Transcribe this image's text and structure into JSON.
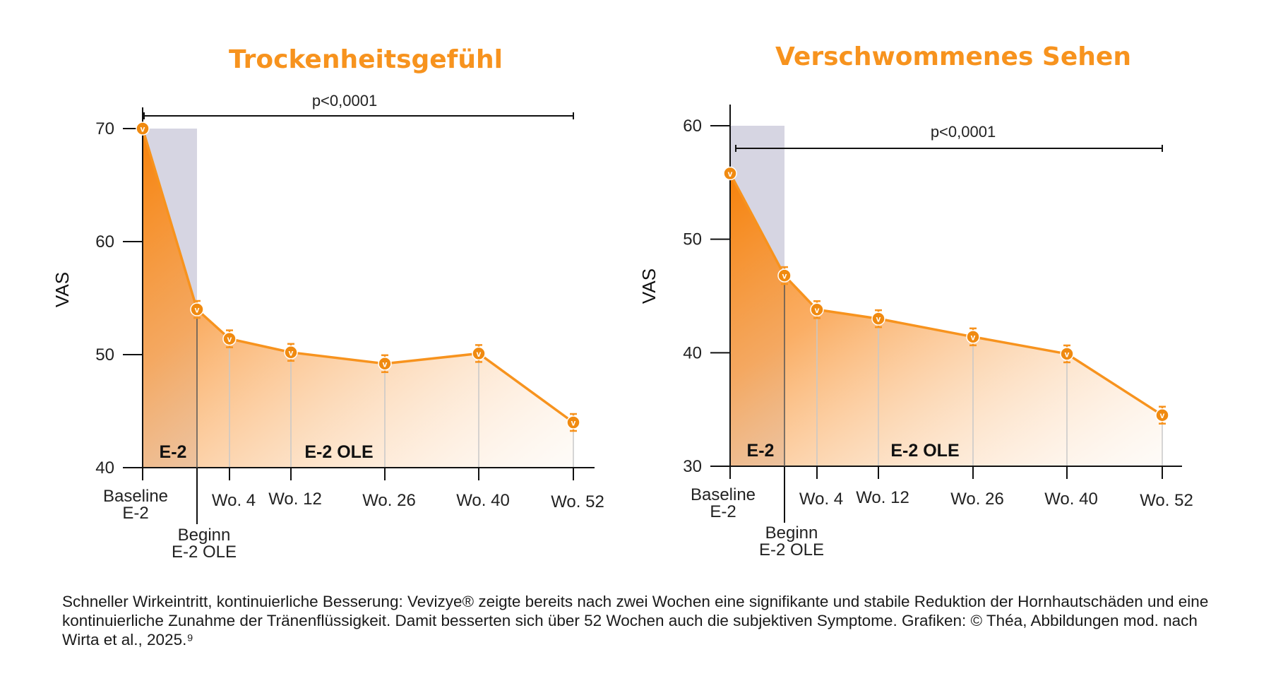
{
  "colors": {
    "accent": "#F7931E",
    "accent_dark": "#F08A10",
    "shade": "#D6D5E2",
    "axis": "#111111",
    "guide": "#C8C8C8"
  },
  "marker_icon": "v-logo-icon",
  "caption": "Schneller Wirkeintritt, kontinuierliche Besserung: Vevizye® zeigte bereits nach zwei Wochen eine signifikante und stabile Reduktion der Hornhautschäden und eine kontinuierliche Zunahme der Tränenflüssigkeit. Damit besserten sich über 52 Wochen auch die subjektiven Symptome. Grafiken: © Théa, Abbildungen mod. nach Wirta et al., 2025.⁹",
  "chart_data": [
    {
      "type": "area",
      "title": "Trockenheitsgefühl",
      "ylabel": "VAS",
      "ylim": [
        40,
        70
      ],
      "yticks": [
        40,
        50,
        60,
        70
      ],
      "x_unit": "weeks",
      "x": [
        -2,
        0,
        4,
        12,
        26,
        40,
        52
      ],
      "values": [
        70,
        54,
        51.4,
        50.2,
        49.2,
        50.1,
        44
      ],
      "category_labels": [
        {
          "lines": [
            "Baseline",
            "E-2"
          ]
        },
        {
          "lines": [
            "Beginn",
            "E-2 OLE"
          ]
        },
        {
          "lines": [
            "Wo. 4"
          ]
        },
        {
          "lines": [
            "Wo. 12"
          ]
        },
        {
          "lines": [
            "Wo. 26"
          ]
        },
        {
          "lines": [
            "Wo. 40"
          ]
        },
        {
          "lines": [
            "Wo. 52"
          ]
        }
      ],
      "phases": [
        {
          "label": "E-2",
          "from": -2,
          "to": 0,
          "shaded": true
        },
        {
          "label": "E-2 OLE",
          "from": 0,
          "to": 52,
          "shaded": false
        }
      ],
      "significance": {
        "label": "p<0,0001",
        "from": -2,
        "to": 52,
        "at_value": 71
      }
    },
    {
      "type": "area",
      "title": "Verschwommenes Sehen",
      "ylabel": "VAS",
      "ylim": [
        30,
        60
      ],
      "yticks": [
        30,
        40,
        50,
        60
      ],
      "x_unit": "weeks",
      "x": [
        -2,
        0,
        4,
        12,
        26,
        40,
        52
      ],
      "values": [
        55.8,
        46.8,
        43.8,
        43,
        41.4,
        39.9,
        34.5
      ],
      "category_labels": [
        {
          "lines": [
            "Baseline",
            "E-2"
          ]
        },
        {
          "lines": [
            "Beginn",
            "E-2 OLE"
          ]
        },
        {
          "lines": [
            "Wo. 4"
          ]
        },
        {
          "lines": [
            "Wo. 12"
          ]
        },
        {
          "lines": [
            "Wo. 26"
          ]
        },
        {
          "lines": [
            "Wo. 40"
          ]
        },
        {
          "lines": [
            "Wo. 52"
          ]
        }
      ],
      "phases": [
        {
          "label": "E-2",
          "from": -2,
          "to": 0,
          "shaded": true
        },
        {
          "label": "E-2 OLE",
          "from": 0,
          "to": 52,
          "shaded": false
        }
      ],
      "significance": {
        "label": "p<0,0001",
        "from": -2,
        "to": 52,
        "at_value": 58
      }
    }
  ]
}
